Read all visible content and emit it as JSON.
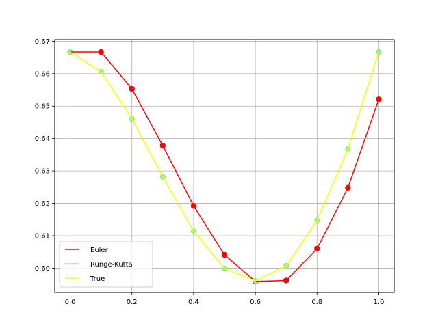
{
  "chart_data": {
    "type": "line",
    "title": "",
    "xlabel": "",
    "ylabel": "",
    "xlim": [
      -0.05,
      1.05
    ],
    "ylim": [
      0.5925,
      0.6705
    ],
    "xticks": [
      0.0,
      0.2,
      0.4,
      0.6,
      0.8,
      1.0
    ],
    "xtick_labels": [
      "0.0",
      "0.2",
      "0.4",
      "0.6",
      "0.8",
      "1.0"
    ],
    "yticks": [
      0.6,
      0.61,
      0.62,
      0.63,
      0.64,
      0.65,
      0.66,
      0.67
    ],
    "ytick_labels": [
      "0.60",
      "0.61",
      "0.62",
      "0.63",
      "0.64",
      "0.65",
      "0.66",
      "0.67"
    ],
    "grid": true,
    "legend_position": "lower-left",
    "x": [
      0.0,
      0.1,
      0.2,
      0.3,
      0.4,
      0.5,
      0.6,
      0.7,
      0.8,
      0.9,
      1.0
    ],
    "series": [
      {
        "name": "Euler",
        "color": "#ff0000",
        "markers": true,
        "values": [
          0.6667,
          0.6667,
          0.6553,
          0.6378,
          0.6192,
          0.6041,
          0.5959,
          0.5962,
          0.606,
          0.6248,
          0.6521
        ]
      },
      {
        "name": "Runge-Kutta",
        "color": "#90ee90",
        "markers": true,
        "values": [
          0.6667,
          0.6606,
          0.646,
          0.6282,
          0.6114,
          0.5999,
          0.5961,
          0.6007,
          0.6147,
          0.6368,
          0.6667
        ]
      },
      {
        "name": "True",
        "color": "#ffff00",
        "markers": false,
        "values": [
          0.6667,
          0.6606,
          0.646,
          0.6282,
          0.6114,
          0.5999,
          0.5961,
          0.6007,
          0.6147,
          0.6368,
          0.6667
        ]
      }
    ]
  }
}
